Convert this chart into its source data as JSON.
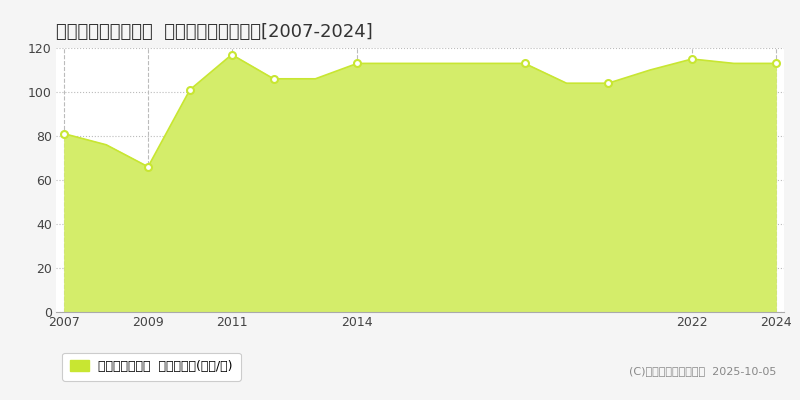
{
  "title": "堺市北区百舌鳥梅町  マンション価格推移[2007-2024]",
  "years": [
    2007,
    2008,
    2009,
    2010,
    2011,
    2012,
    2013,
    2014,
    2015,
    2016,
    2017,
    2018,
    2019,
    2020,
    2021,
    2022,
    2023,
    2024
  ],
  "values": [
    81,
    76,
    66,
    101,
    117,
    106,
    106,
    113,
    113,
    113,
    113,
    113,
    104,
    104,
    110,
    115,
    113,
    113
  ],
  "line_color": "#c8e632",
  "fill_color": "#d4ed6a",
  "marker_color": "#c8e632",
  "marker_fill_color": "#ffffff",
  "background_color": "#f5f5f5",
  "plot_bg_color": "#ffffff",
  "grid_color": "#bbbbbb",
  "ylim": [
    0,
    120
  ],
  "yticks": [
    0,
    20,
    40,
    60,
    80,
    100,
    120
  ],
  "xlim_start": 2007,
  "xlim_end": 2024,
  "xticks": [
    2007,
    2009,
    2011,
    2014,
    2022,
    2024
  ],
  "legend_label": "マンション価格  平均坪単価(万円/坪)",
  "copyright_text": "(C)土地価格ドットコム  2025-10-05",
  "title_fontsize": 13,
  "axis_fontsize": 9,
  "legend_fontsize": 9,
  "copyright_fontsize": 8,
  "marker_indices": [
    0,
    2,
    3,
    4,
    5,
    7,
    11,
    13,
    15,
    17
  ]
}
